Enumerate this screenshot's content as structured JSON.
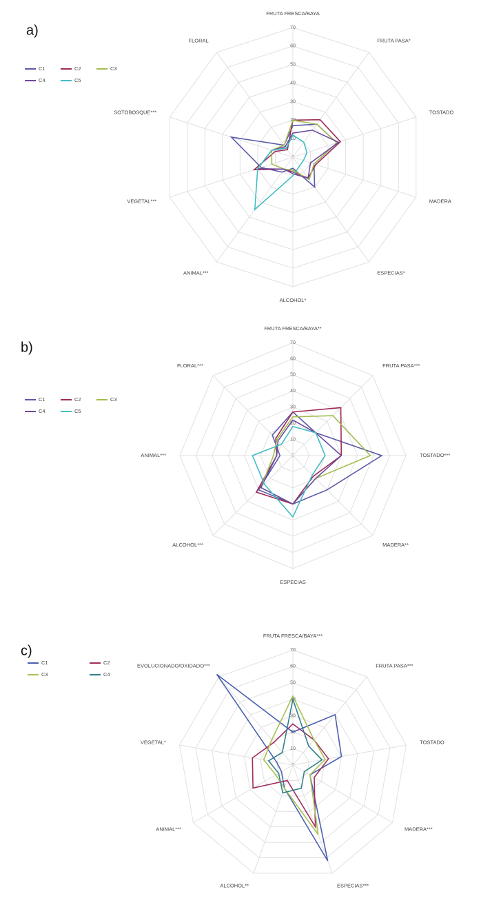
{
  "chart_data": [
    {
      "type": "radar",
      "label": "a)",
      "legend": "upper left",
      "categories": [
        "FRUTA FRESCA/BAYA",
        "FRUTA PASA*",
        "TOSTADO",
        "MADERA",
        "ESPECIAS*",
        "ALCOHOL*",
        "ANIMAL***",
        "VEGETAL***",
        "SOTOBOSQUE***",
        "FLORAL"
      ],
      "ylim": [
        0,
        70
      ],
      "yticks": [
        0,
        10,
        20,
        30,
        40,
        50,
        60,
        70
      ],
      "series": [
        {
          "name": "C1",
          "color": "#5a5aa8",
          "values": [
            17,
            22,
            25,
            12,
            20,
            6,
            10,
            18,
            35,
            8
          ]
        },
        {
          "name": "C2",
          "color": "#9c2a55",
          "values": [
            20,
            25,
            27,
            13,
            14,
            8,
            8,
            22,
            10,
            5
          ]
        },
        {
          "name": "C3",
          "color": "#a2bd4f",
          "values": [
            20,
            22,
            25,
            12,
            15,
            7,
            8,
            12,
            12,
            8
          ]
        },
        {
          "name": "C4",
          "color": "#6c4aa0",
          "values": [
            13,
            18,
            26,
            10,
            14,
            9,
            8,
            20,
            12,
            7
          ]
        },
        {
          "name": "C5",
          "color": "#45bcc4",
          "values": [
            12,
            10,
            8,
            6,
            6,
            10,
            35,
            20,
            12,
            6
          ]
        }
      ]
    },
    {
      "type": "radar",
      "label": "b)",
      "legend": "upper left",
      "categories": [
        "FRUTA FRESCA/BAYA**",
        "FRUTA PASA***",
        "TOSTADO***",
        "MADERA**",
        "ESPECIAS",
        "ALCOHOL***",
        "ANIMAL***",
        "FLORAL***"
      ],
      "ylim": [
        0,
        70
      ],
      "yticks": [
        0,
        10,
        20,
        30,
        40,
        50,
        60,
        70
      ],
      "series": [
        {
          "name": "C1",
          "color": "#5a5aa8",
          "values": [
            27,
            20,
            55,
            30,
            30,
            30,
            8,
            18
          ]
        },
        {
          "name": "C2",
          "color": "#9c2a55",
          "values": [
            27,
            42,
            30,
            18,
            30,
            32,
            10,
            15
          ]
        },
        {
          "name": "C3",
          "color": "#a2bd4f",
          "values": [
            24,
            35,
            48,
            20,
            30,
            28,
            12,
            14
          ]
        },
        {
          "name": "C4",
          "color": "#6c4aa0",
          "values": [
            22,
            20,
            30,
            20,
            30,
            28,
            10,
            13
          ]
        },
        {
          "name": "C5",
          "color": "#45bcc4",
          "values": [
            18,
            20,
            20,
            17,
            38,
            25,
            25,
            10
          ]
        }
      ]
    },
    {
      "type": "radar",
      "label": "c)",
      "legend": "upper left",
      "categories": [
        "FRUTA FRESCA/BAYA***",
        "FRUTA PASA***",
        "TOSTADO",
        "MADERA***",
        "ESPECIAS***",
        "ALCOHOL**",
        "ANIMAL***",
        "VEGETAL*",
        "EVOLUCIONADO/OXIDADO***"
      ],
      "ylim": [
        0,
        70
      ],
      "yticks": [
        0,
        10,
        20,
        30,
        40,
        50,
        60,
        70
      ],
      "series": [
        {
          "name": "C1",
          "color": "#4a5fb0",
          "values": [
            20,
            40,
            30,
            12,
            62,
            15,
            8,
            10,
            72
          ]
        },
        {
          "name": "C2",
          "color": "#a02d60",
          "values": [
            25,
            20,
            22,
            15,
            40,
            10,
            28,
            25,
            18
          ]
        },
        {
          "name": "C3",
          "color": "#a9c052",
          "values": [
            42,
            20,
            20,
            12,
            45,
            15,
            12,
            18,
            20
          ]
        },
        {
          "name": "C4",
          "color": "#2f7f8a",
          "values": [
            40,
            15,
            18,
            8,
            15,
            18,
            10,
            15,
            10
          ]
        }
      ]
    }
  ]
}
